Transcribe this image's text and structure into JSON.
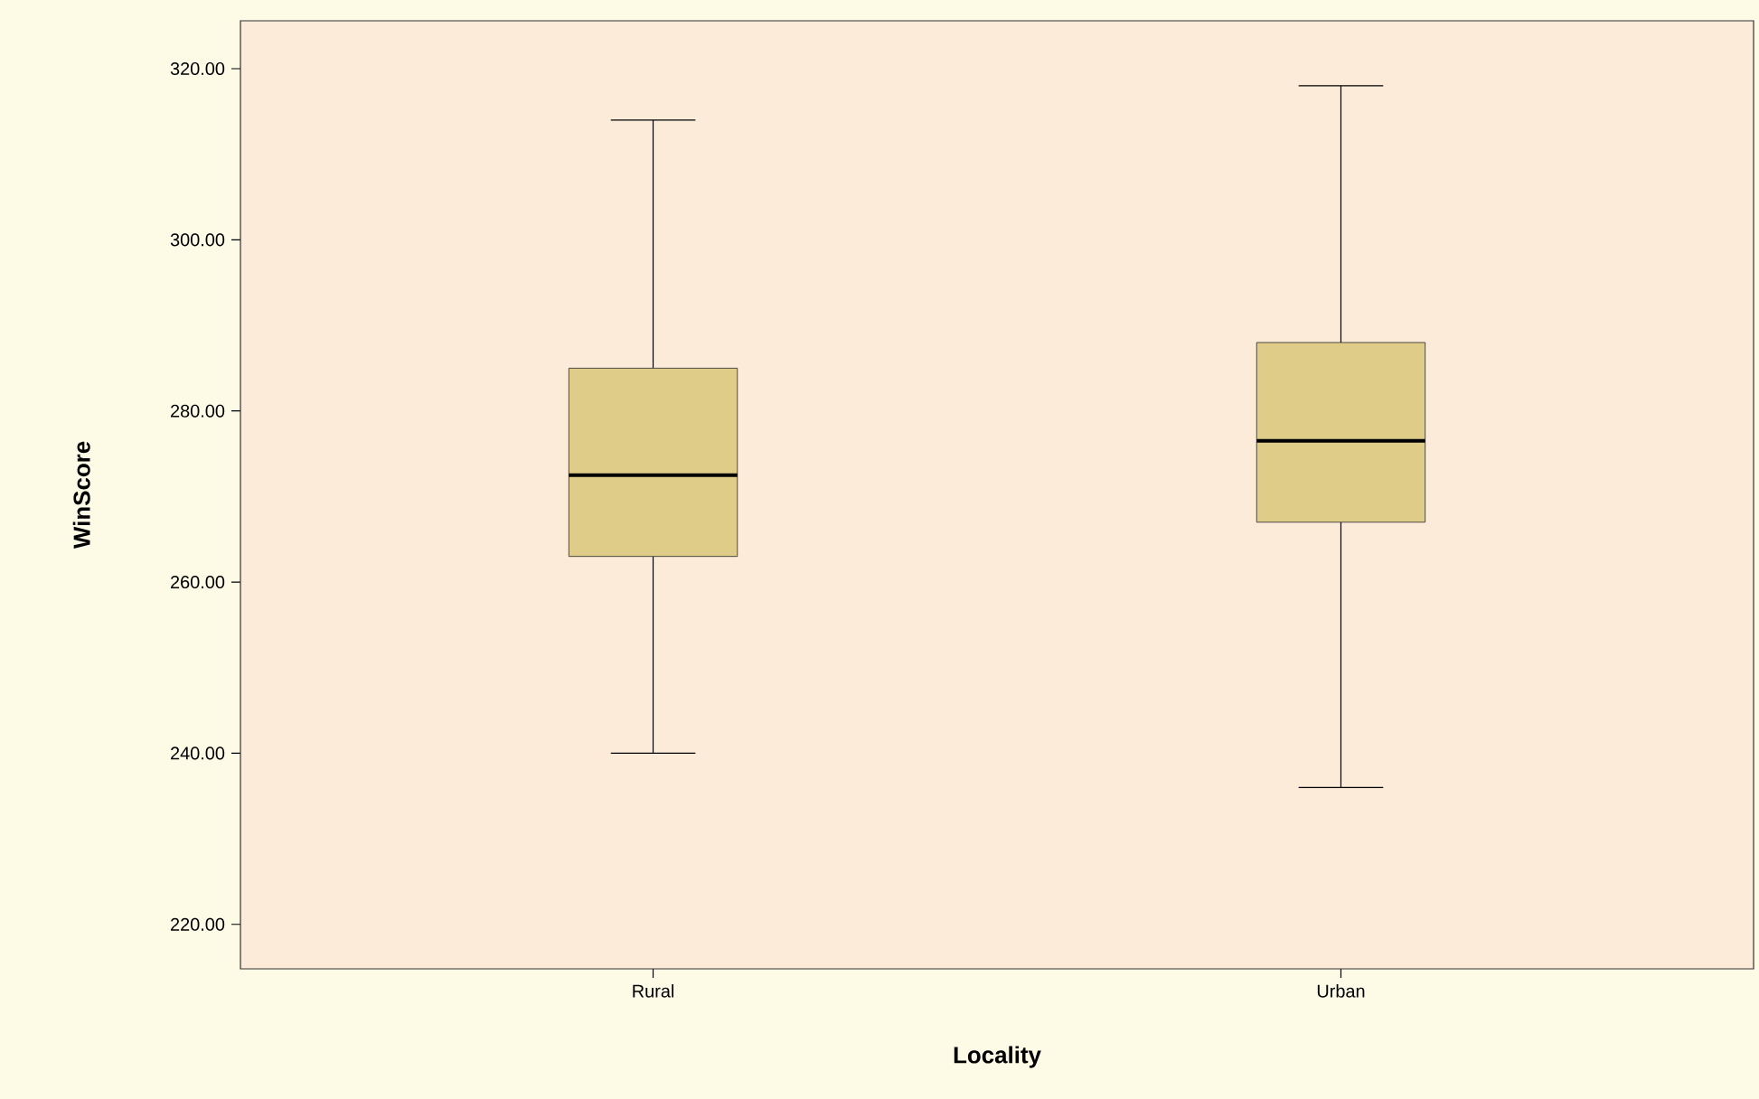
{
  "chart_data": {
    "type": "box",
    "xlabel": "Locality",
    "ylabel": "WinScore",
    "categories": [
      "Rural",
      "Urban"
    ],
    "boxes": [
      {
        "low": 240,
        "q1": 263,
        "median": 272.5,
        "q3": 285,
        "high": 314
      },
      {
        "low": 236,
        "q1": 267,
        "median": 276.5,
        "q3": 288,
        "high": 318
      }
    ],
    "color": "#dfcc88",
    "ylim": [
      214.8,
      325.6
    ],
    "yticks": [
      {
        "value": 220,
        "label": "220.00"
      },
      {
        "value": 240,
        "label": "240.00"
      },
      {
        "value": 260,
        "label": "260.00"
      },
      {
        "value": 280,
        "label": "280.00"
      },
      {
        "value": 300,
        "label": "300.00"
      },
      {
        "value": 320,
        "label": "320.00"
      }
    ]
  }
}
